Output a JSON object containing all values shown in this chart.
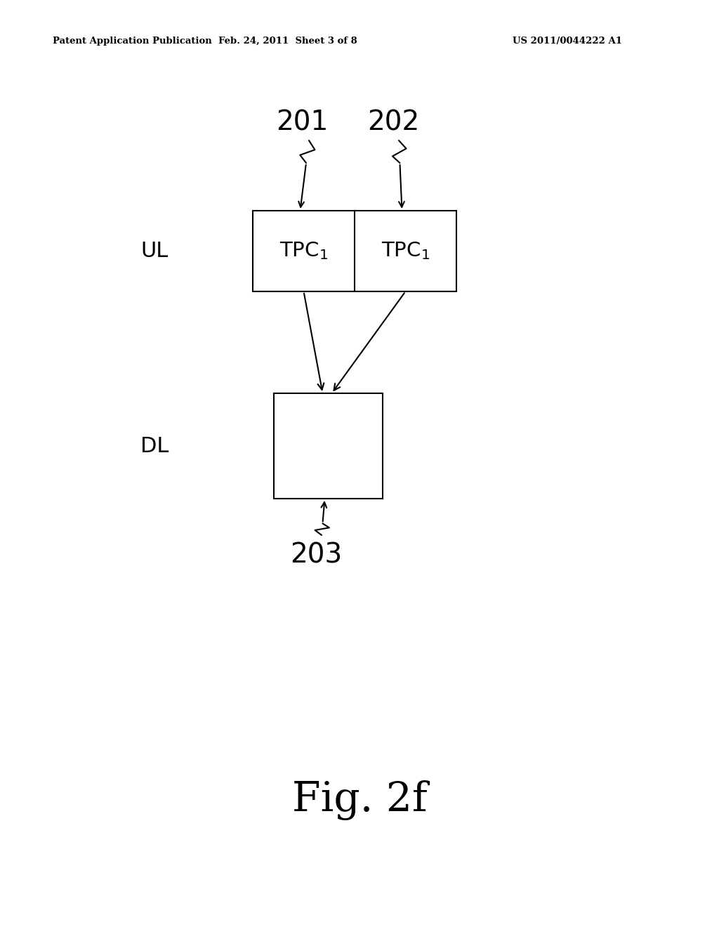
{
  "background_color": "#ffffff",
  "header_left": "Patent Application Publication",
  "header_mid": "Feb. 24, 2011  Sheet 3 of 8",
  "header_right": "US 2011/0044222 A1",
  "header_fontsize": 9.5,
  "ul_label": "UL",
  "dl_label": "DL",
  "label_fontsize": 22,
  "tpc_label": "TPC",
  "tpc_sub": "1",
  "tpc_fontsize": 21,
  "ref_fontsize": 28,
  "fig_label": "Fig. 2f",
  "fig_fontsize": 42,
  "label_201": "201",
  "label_202": "202",
  "label_203": "203"
}
